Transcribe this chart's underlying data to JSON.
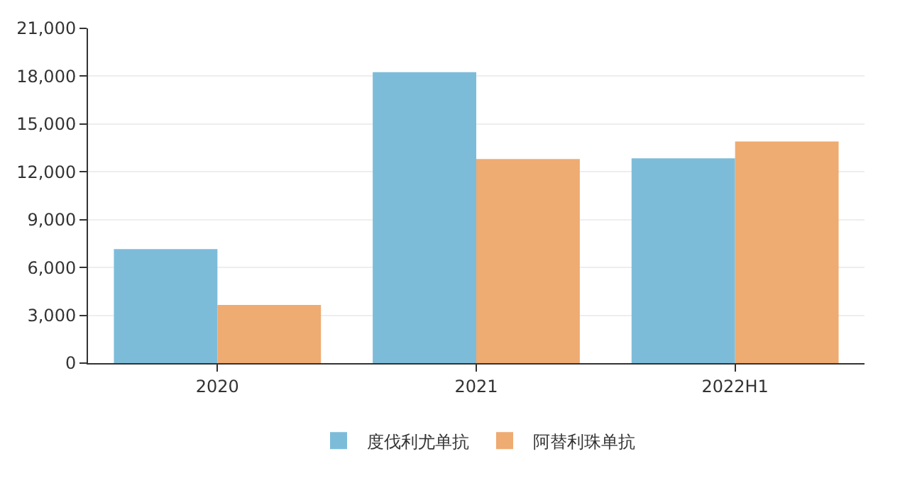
{
  "chart_data": {
    "type": "bar",
    "categories": [
      "2020",
      "2021",
      "2022H1"
    ],
    "series": [
      {
        "name": "度伐利尤单抗",
        "color": "#7dbcd9",
        "values": [
          7150,
          18250,
          12850
        ]
      },
      {
        "name": "阿替利珠单抗",
        "color": "#eeab72",
        "values": [
          3650,
          12800,
          13900
        ]
      }
    ],
    "ylim": [
      0,
      21000
    ],
    "yticks": [
      {
        "value": 0,
        "label": "0"
      },
      {
        "value": 3000,
        "label": "3,000"
      },
      {
        "value": 6000,
        "label": "6,000"
      },
      {
        "value": 9000,
        "label": "9,000"
      },
      {
        "value": 12000,
        "label": "12,000"
      },
      {
        "value": 15000,
        "label": "15,000"
      },
      {
        "value": 18000,
        "label": "18,000"
      },
      {
        "value": 21000,
        "label": "21,000"
      }
    ],
    "grid": "y",
    "legend": "bottom"
  }
}
